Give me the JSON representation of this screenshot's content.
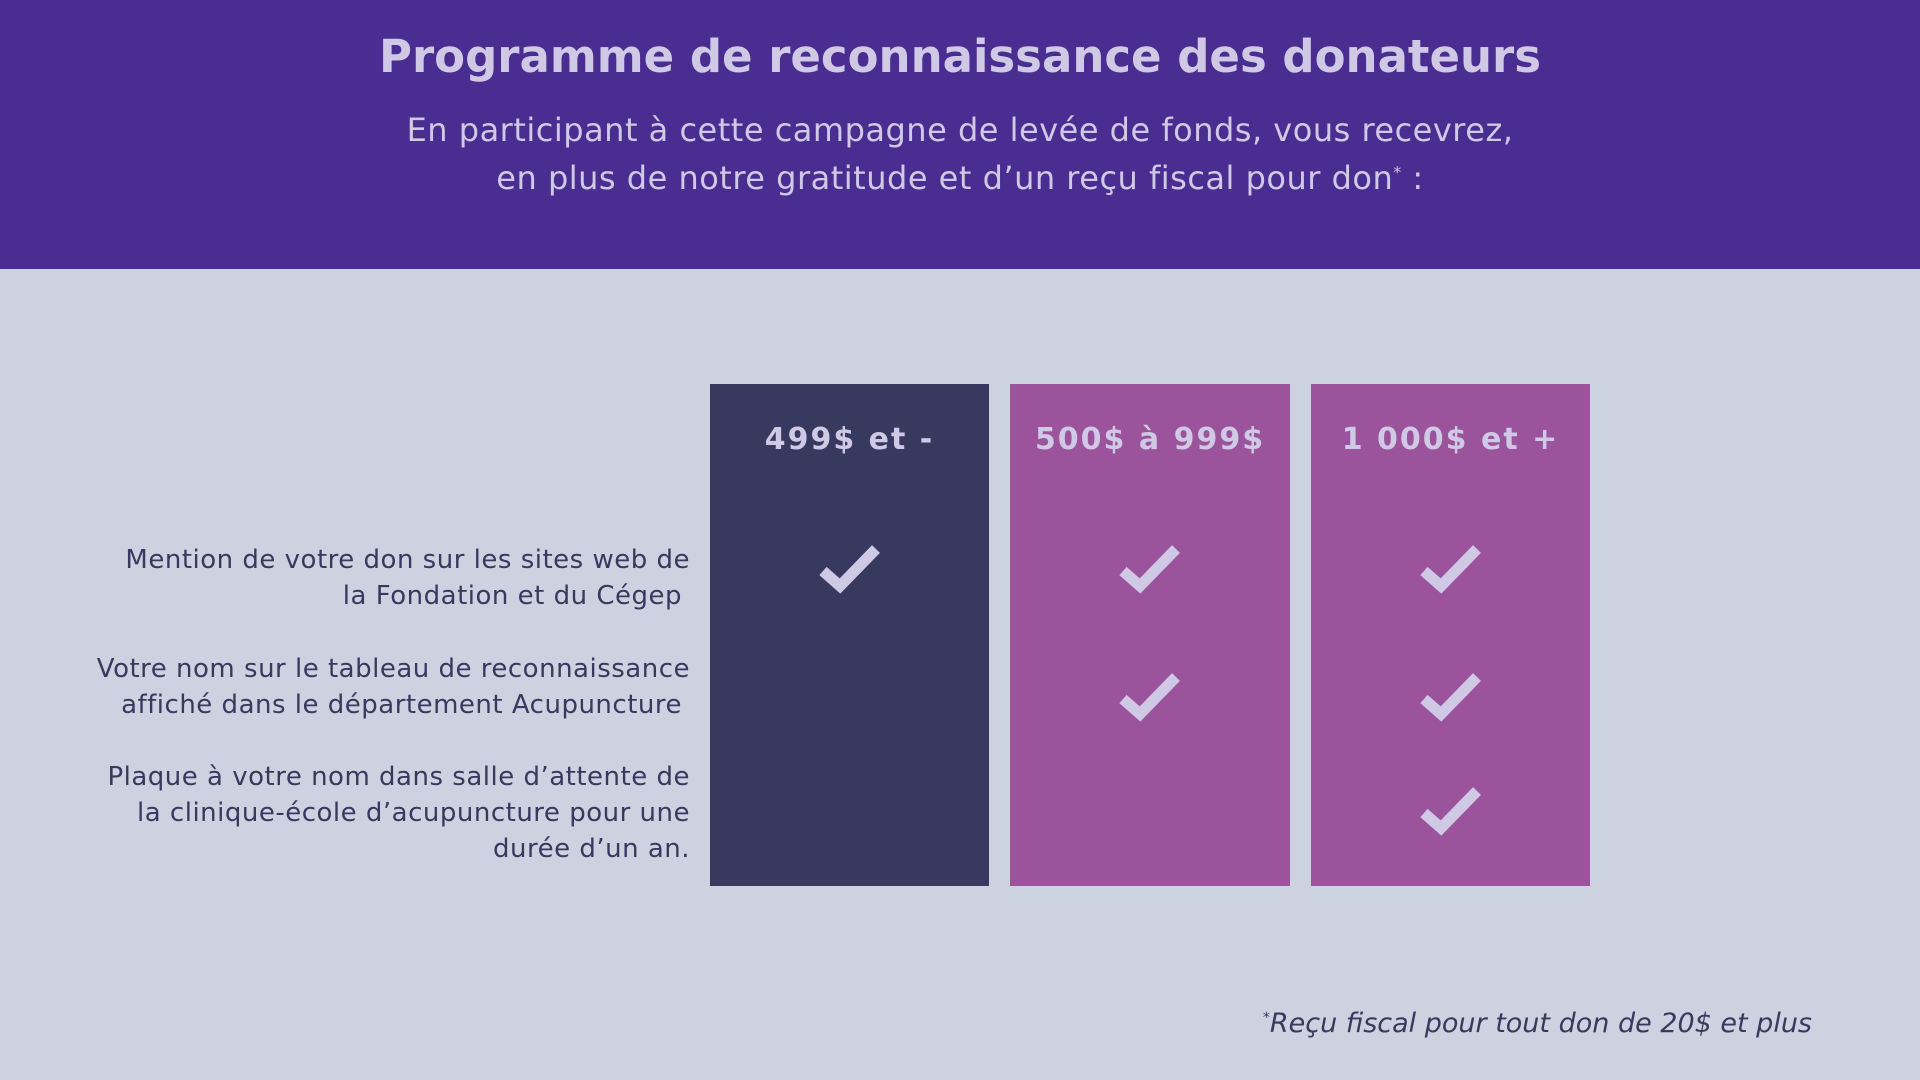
{
  "header": {
    "title": "Programme de reconnaissance des donateurs",
    "subtitle_line1": "En participant à cette campagne de levée de fonds, vous recevrez,",
    "subtitle_line2": "en plus de notre gratitude et d’un reçu fiscal pour don",
    "subtitle_marker": "*",
    "subtitle_end": " :"
  },
  "tiers": [
    {
      "label": "499$ et -",
      "color": "#38395f"
    },
    {
      "label": "500$ à 999$",
      "color": "#9b549b"
    },
    {
      "label": "1 000$ et +",
      "color": "#9b549b"
    }
  ],
  "benefits": [
    {
      "lines": [
        "Mention de votre don sur les sites web de",
        "la Fondation et du Cégep"
      ],
      "included": [
        true,
        true,
        true
      ]
    },
    {
      "lines": [
        "Votre nom sur le tableau de reconnaissance",
        "affiché dans le département Acupuncture"
      ],
      "included": [
        false,
        true,
        true
      ]
    },
    {
      "lines": [
        "Plaque à votre nom dans salle d’attente de",
        "la clinique-école d’acupuncture  pour une",
        "durée d’un an."
      ],
      "included": [
        false,
        false,
        true
      ]
    }
  ],
  "icons": {
    "included": "checkmark-icon"
  },
  "footnote": {
    "marker": "*",
    "text": "Reçu fiscal pour tout don de 20$ et plus"
  },
  "colors": {
    "header_bg": "#4a2d91",
    "page_bg": "#cdd2e0",
    "text_light": "#cfc9e6",
    "text_dark": "#38395f"
  }
}
